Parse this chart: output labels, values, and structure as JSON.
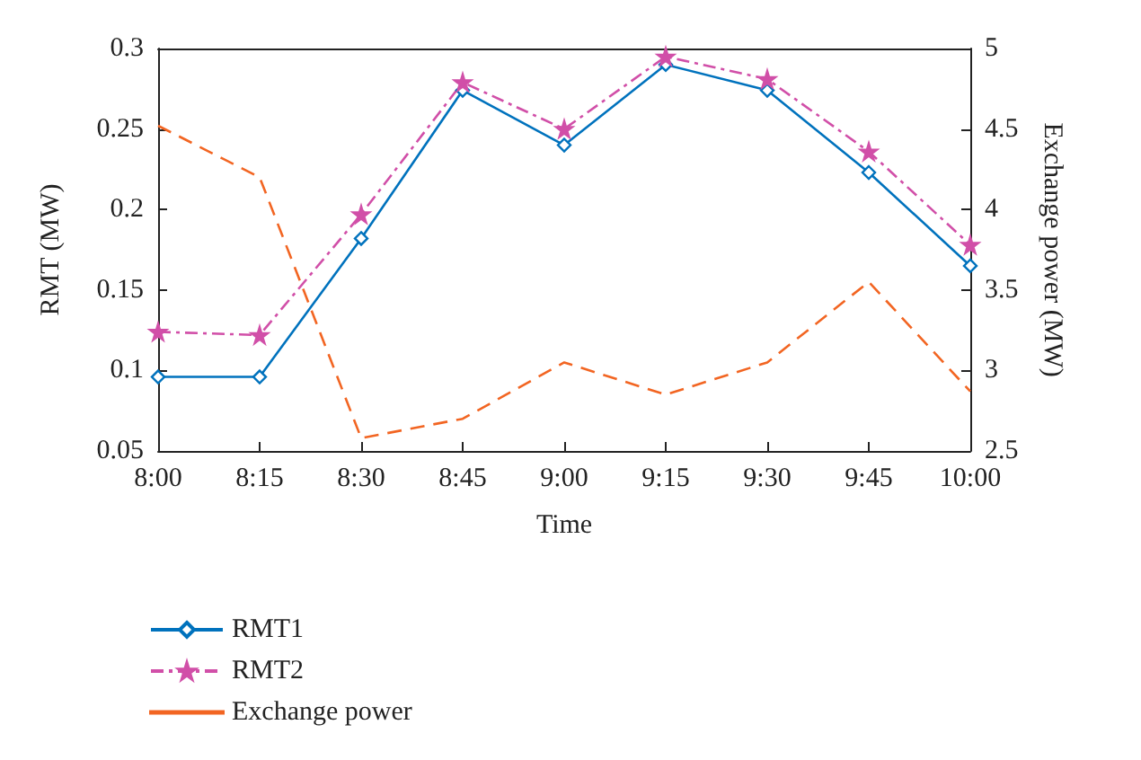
{
  "chart_data": {
    "type": "line",
    "xlabel": "Time",
    "ylabel": "RMT (MW)",
    "y2label": "Exchange power (MW)",
    "categories": [
      "8:00",
      "8:15",
      "8:30",
      "8:45",
      "9:00",
      "9:15",
      "9:30",
      "9:45",
      "10:00"
    ],
    "series": [
      {
        "name": "RMT1",
        "color": "#0072bd",
        "marker": "diamond",
        "line_style": "solid",
        "values": [
          0.096,
          0.096,
          0.182,
          0.274,
          0.24,
          0.29,
          0.274,
          0.223,
          0.165
        ]
      },
      {
        "name": "RMT2",
        "color": "#d14fa8",
        "marker": "star",
        "line_style": "dashdot",
        "values": [
          0.124,
          0.122,
          0.197,
          0.279,
          0.25,
          0.295,
          0.281,
          0.236,
          0.178
        ]
      },
      {
        "name": "Exchange power",
        "color": "#f26522",
        "marker": "none",
        "line_style": "dashed",
        "axis": "y2",
        "values": [
          4.52,
          4.2,
          2.58,
          2.7,
          3.05,
          2.85,
          3.05,
          3.55,
          2.87
        ]
      }
    ],
    "ylim": [
      0.05,
      0.3
    ],
    "yticks": [
      0.05,
      0.1,
      0.15,
      0.2,
      0.25,
      0.3
    ],
    "y2lim": [
      2.5,
      5
    ],
    "y2ticks": [
      2.5,
      3,
      3.5,
      4,
      4.5,
      5
    ],
    "grid": false,
    "legend": "bottom left"
  }
}
